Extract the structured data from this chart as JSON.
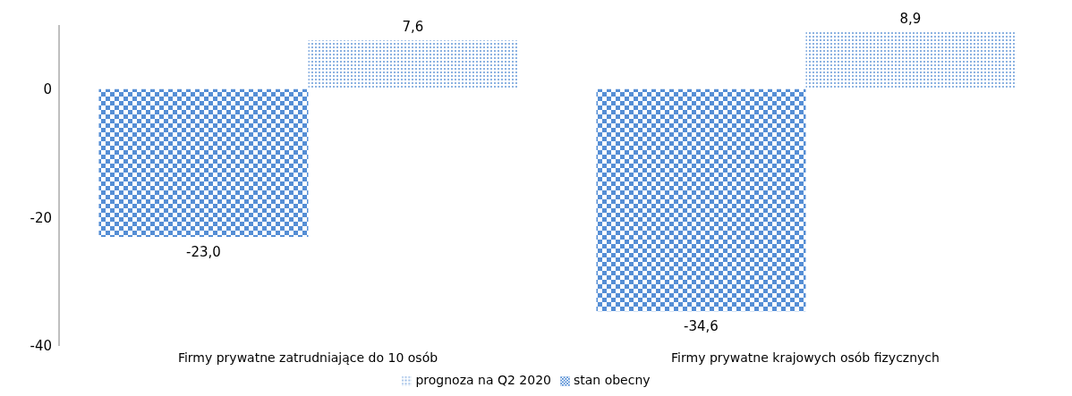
{
  "chart_data": {
    "type": "bar",
    "categories": [
      "Firmy prywatne zatrudniające do 10 osób",
      "Firmy prywatne krajowych osób fizycznych"
    ],
    "series": [
      {
        "name": "stan obecny",
        "color": "#558ed5",
        "values": [
          -23.0,
          -34.6
        ],
        "value_labels": [
          "-23,0",
          "-34,6"
        ]
      },
      {
        "name": "prognoza na Q2 2020",
        "color": "#8db3e2",
        "values": [
          7.6,
          8.9
        ],
        "value_labels": [
          "7,6",
          "8,9"
        ]
      }
    ],
    "ylim": [
      -40,
      10
    ],
    "yticks": [
      -40,
      -20,
      0
    ],
    "legend": "bottom"
  }
}
